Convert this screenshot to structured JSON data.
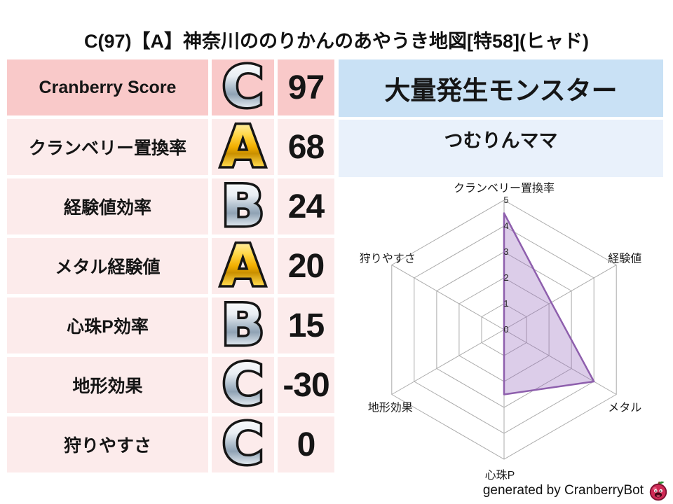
{
  "title": "C(97)【A】神奈川ののりかんのあやうき地図[特58](ヒャド)",
  "stats_table": {
    "rows": [
      {
        "label": "Cranberry Score",
        "grade": "C",
        "grade_style": "silver",
        "value": "97",
        "highlight": true
      },
      {
        "label": "クランベリー置換率",
        "grade": "A",
        "grade_style": "gold",
        "value": "68",
        "highlight": false
      },
      {
        "label": "経験値効率",
        "grade": "B",
        "grade_style": "silver",
        "value": "24",
        "highlight": false
      },
      {
        "label": "メタル経験値",
        "grade": "A",
        "grade_style": "gold",
        "value": "20",
        "highlight": false
      },
      {
        "label": "心珠P効率",
        "grade": "B",
        "grade_style": "silver",
        "value": "15",
        "highlight": false
      },
      {
        "label": "地形効果",
        "grade": "C",
        "grade_style": "silver",
        "value": "-30",
        "highlight": false
      },
      {
        "label": "狩りやすさ",
        "grade": "C",
        "grade_style": "silver",
        "value": "0",
        "highlight": false
      }
    ]
  },
  "monster_panel": {
    "header": "大量発生モンスター",
    "name": "つむりんママ"
  },
  "chart_data": {
    "type": "radar",
    "categories": [
      "クランベリー置換率",
      "経験値",
      "メタル",
      "心珠P",
      "地形効果",
      "狩りやすさ"
    ],
    "values": [
      4.5,
      2.1,
      4.0,
      2.5,
      0,
      0
    ],
    "ticks": [
      0,
      1,
      2,
      3,
      4,
      5
    ],
    "rmax": 5,
    "grid": true,
    "legend": "none",
    "fill_color": "#9467bd",
    "fill_opacity": 0.33,
    "line_color": "#8e5fad",
    "grid_color": "#ababab"
  },
  "footer": {
    "credit": "generated by CranberryBot",
    "icon": "cranberry-mascot-icon"
  },
  "colors": {
    "row_highlight_bg": "#f9c9c9",
    "row_bg": "#fcebeb",
    "panel_header_bg": "#c9e1f5",
    "panel_body_bg": "#e9f1fb",
    "grade_gold": "#f2ae00",
    "grade_silver": "#aebdcb"
  }
}
